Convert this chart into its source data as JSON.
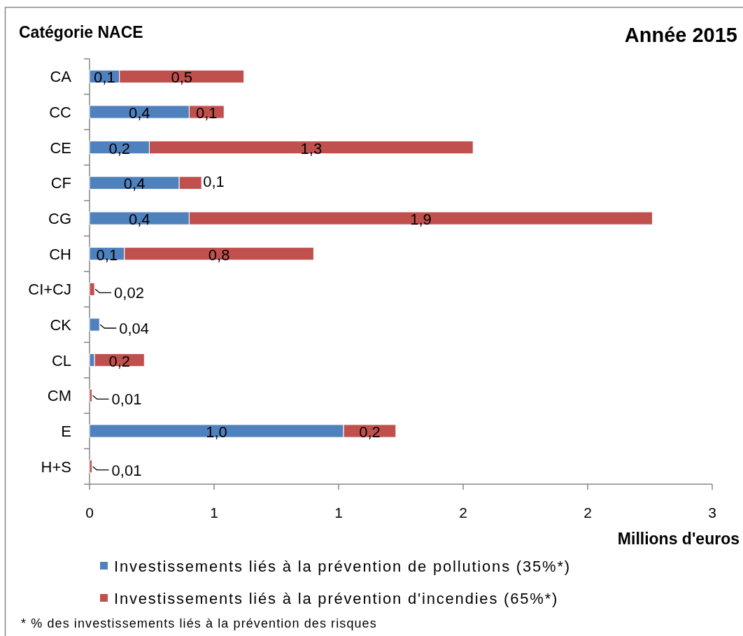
{
  "chart_data": {
    "type": "bar",
    "orientation": "horizontal",
    "stacked": true,
    "title": "Année 2015",
    "ylabel": "Catégorie NACE",
    "xlabel": "Millions d'euros",
    "categories": [
      "CA",
      "CC",
      "CE",
      "CF",
      "CG",
      "CH",
      "CI+CJ",
      "CK",
      "CL",
      "CM",
      "E",
      "H+S"
    ],
    "series": [
      {
        "name": "Investissements liés à la prévention de pollutions (35%*)",
        "color": "#4f81bd",
        "values": [
          0.12,
          0.4,
          0.24,
          0.36,
          0.4,
          0.14,
          null,
          0.04,
          0.02,
          null,
          1.02,
          null
        ],
        "value_labels": [
          "0,1",
          "0,4",
          "0,2",
          "0,4",
          "0,4",
          "0,1",
          null,
          "0,04",
          null,
          null,
          "1,0",
          null
        ]
      },
      {
        "name": "Investissements liés à la prévention d'incendies (65%*)",
        "color": "#c0504d",
        "values": [
          0.5,
          0.14,
          1.3,
          0.09,
          1.86,
          0.76,
          0.02,
          null,
          0.2,
          0.01,
          0.21,
          0.01
        ],
        "value_labels": [
          "0,5",
          "0,1",
          "1,3",
          "0,1",
          "1,9",
          "0,8",
          "0,02",
          null,
          "0,2",
          "0,01",
          "0,2",
          "0,01"
        ]
      }
    ],
    "xlim": [
      0,
      2.5
    ],
    "xticks": [
      0,
      {
        "value": 0.5,
        "label": "1"
      },
      1,
      {
        "value": 1.5,
        "label": "2"
      },
      2,
      {
        "value": 2.5,
        "label": "3"
      }
    ],
    "legend": "bottom",
    "annotations": [
      "* % des investissements liés à la prévention des risques"
    ]
  }
}
